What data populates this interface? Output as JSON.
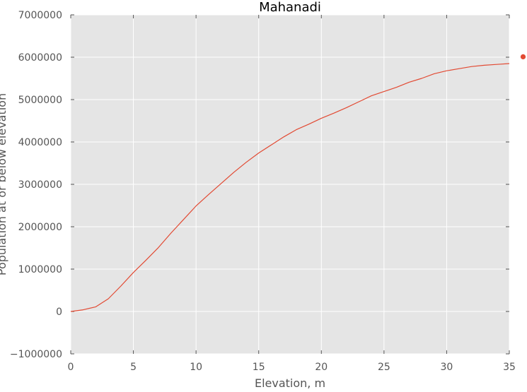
{
  "chart_data": {
    "type": "line",
    "title": "Mahanadi",
    "xlabel": "Elevation, m",
    "ylabel": "Population at or below elevation",
    "xlim": [
      0,
      35
    ],
    "ylim": [
      -1000000,
      7000000
    ],
    "x_ticks": [
      0,
      5,
      10,
      15,
      20,
      25,
      30,
      35
    ],
    "y_ticks": [
      -1000000,
      0,
      1000000,
      2000000,
      3000000,
      4000000,
      5000000,
      6000000,
      7000000
    ],
    "x_tick_labels": [
      "0",
      "5",
      "10",
      "15",
      "20",
      "25",
      "30",
      "35"
    ],
    "y_tick_labels": [
      "−1000000",
      "0",
      "1000000",
      "2000000",
      "3000000",
      "4000000",
      "5000000",
      "6000000",
      "7000000"
    ],
    "grid": true,
    "background": "#e5e5e5",
    "series": [
      {
        "color": "#e24a33",
        "x": [
          0,
          1,
          2,
          3,
          4,
          5,
          6,
          7,
          8,
          9,
          10,
          11,
          12,
          13,
          14,
          15,
          16,
          17,
          18,
          19,
          20,
          21,
          22,
          23,
          24,
          25,
          26,
          27,
          28,
          29,
          30,
          31,
          32,
          33,
          34,
          35
        ],
        "y": [
          0,
          40000,
          110000,
          300000,
          600000,
          920000,
          1210000,
          1510000,
          1850000,
          2170000,
          2490000,
          2760000,
          3020000,
          3280000,
          3520000,
          3740000,
          3930000,
          4120000,
          4290000,
          4420000,
          4560000,
          4680000,
          4810000,
          4950000,
          5090000,
          5190000,
          5290000,
          5410000,
          5500000,
          5610000,
          5680000,
          5730000,
          5780000,
          5810000,
          5830000,
          5850000
        ]
      }
    ],
    "outlier_point": {
      "x": 36.1,
      "y": 6010000,
      "color": "#e24a33"
    }
  }
}
